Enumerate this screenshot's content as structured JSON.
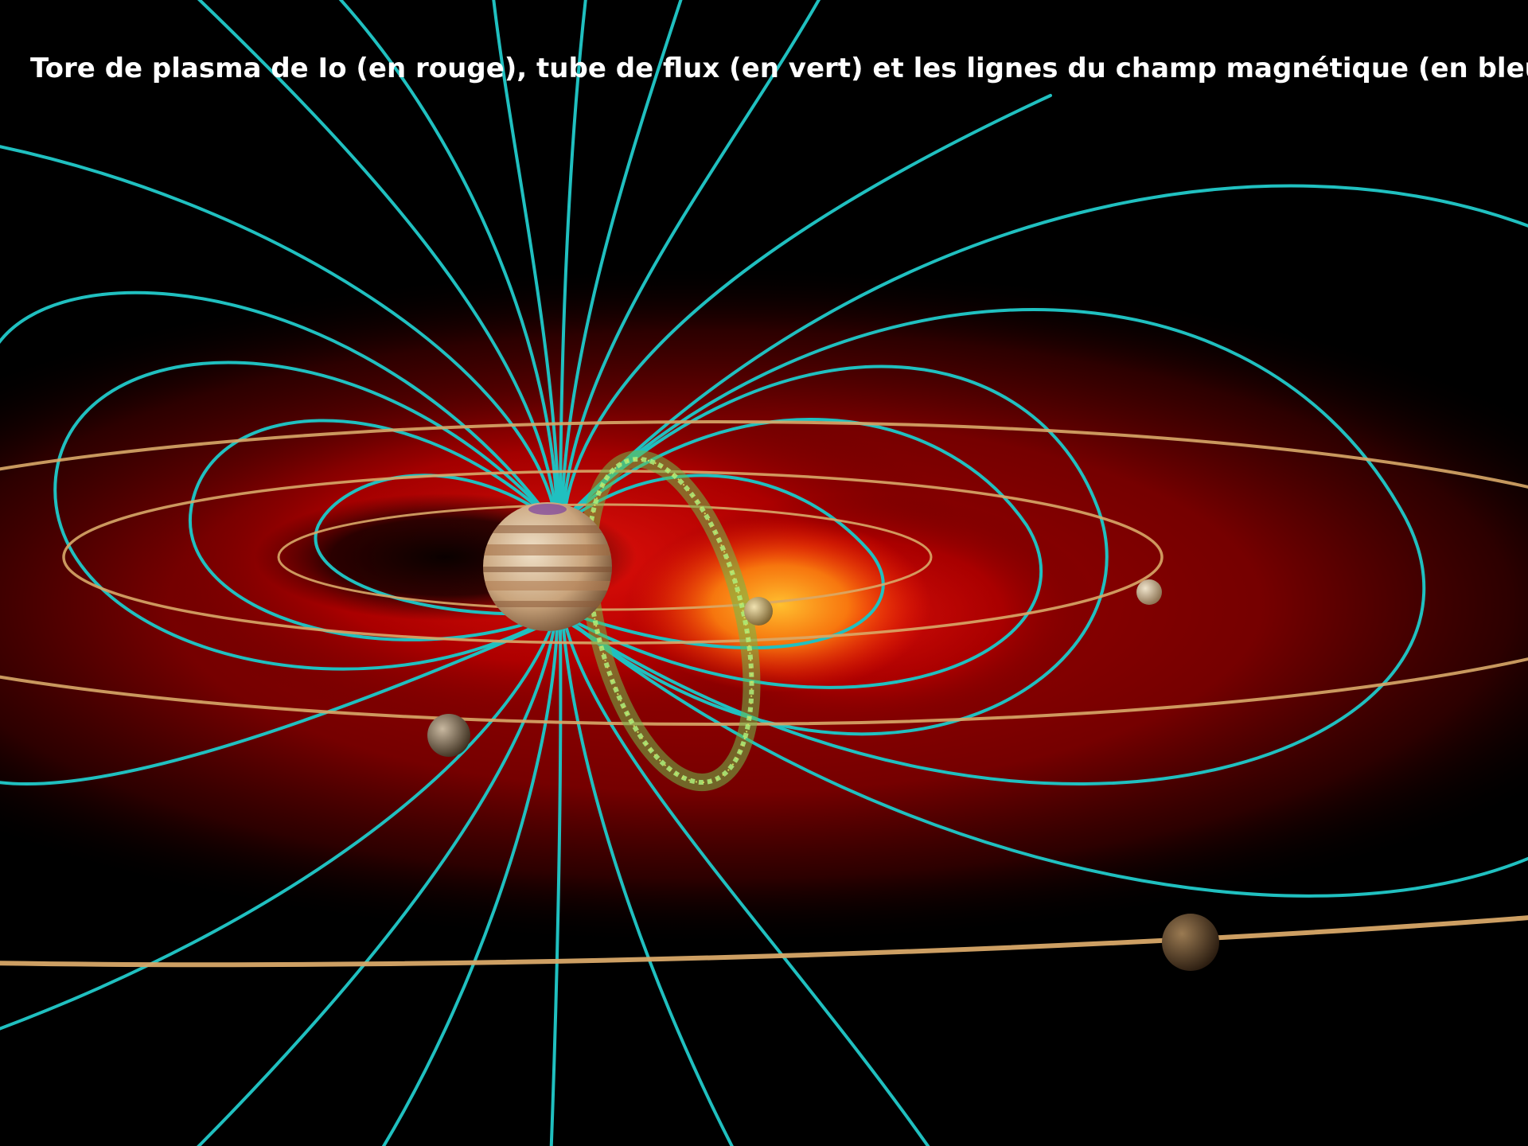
{
  "caption": "Tore de plasma de Io (en rouge), tube de flux (en vert) et les lignes du champ magnétique (en bleu)",
  "colors": {
    "background": "#000000",
    "plasma_torus": "#d01010",
    "plasma_hot": "#ffa020",
    "flux_tube": "#7fe060",
    "field_lines": "#20c0c0",
    "orbits": "#d8a868",
    "caption_text": "#ffffff"
  },
  "objects": {
    "planet": "jupiter",
    "moons": [
      "io",
      "europa",
      "ganymede",
      "callisto"
    ]
  }
}
